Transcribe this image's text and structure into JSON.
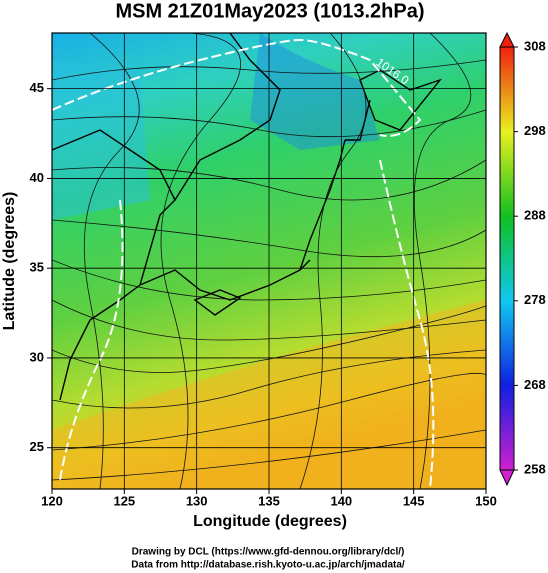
{
  "chart_data": {
    "type": "map",
    "title": "MSM 21Z01May2023 (1013.2hPa)",
    "x_label": "Longitude (degrees)",
    "y_label": "Latitude  (degrees)",
    "xlim": [
      120,
      150
    ],
    "xticks": [
      120,
      125,
      130,
      135,
      140,
      145,
      150
    ],
    "ylim": [
      22.7,
      48.1
    ],
    "yticks": [
      25,
      30,
      35,
      40,
      45
    ],
    "grid": true,
    "colorbar": {
      "lim": [
        258,
        308
      ],
      "ticks": [
        258,
        268,
        278,
        288,
        298,
        308
      ]
    },
    "annotations": [
      "1016.0"
    ],
    "footer": [
      "Drawing by DCL (https://www.gfd-dennou.org/library/dcl/)",
      "Data from http://database.rish.kyoto-u.ac.jp/arch/jmadata/"
    ]
  }
}
